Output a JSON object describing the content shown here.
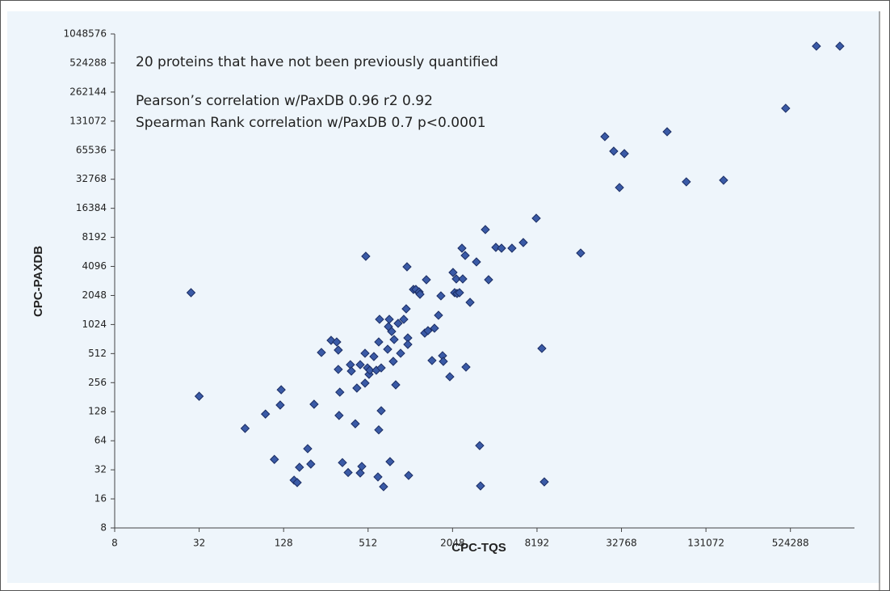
{
  "chart_data": {
    "type": "scatter",
    "annotations": [
      "20 proteins that have not been previously quantified",
      "Pearson’s correlation w/PaxDB 0.96 r2 0.92",
      "Spearman Rank correlation w/PaxDB 0.7 p<0.0001"
    ],
    "x_label": "CPC-TQS",
    "y_label": "CPC-PAXDB",
    "xscale": "log",
    "yscale": "log",
    "log_base": 2,
    "xlim": [
      8,
      1500000
    ],
    "ylim": [
      8,
      1048576
    ],
    "xticks": [
      8,
      32,
      128,
      512,
      2048,
      8192,
      32768,
      131072,
      524288
    ],
    "yticks": [
      8,
      16,
      32,
      64,
      128,
      256,
      512,
      1024,
      2048,
      4096,
      8192,
      16384,
      32768,
      65536,
      131072,
      262144,
      524288,
      1048576
    ],
    "color": "#3a5aa6",
    "series": [
      {
        "x": [
          28,
          32,
          68,
          95,
          110,
          121,
          123,
          152,
          160,
          166,
          190,
          200,
          211,
          238,
          279,
          306,
          314,
          314,
          318,
          322,
          336,
          369,
          383,
          389,
          415,
          426,
          450,
          450,
          462,
          487,
          487,
          493,
          507,
          520,
          527,
          563,
          586,
          602,
          610,
          610,
          618,
          635,
          635,
          660,
          706,
          715,
          725,
          734,
          754,
          774,
          785,
          806,
          838,
          873,
          920,
          957,
          970,
          983,
          983,
          996,
          1078,
          1122,
          1183,
          1200,
          1298,
          1333,
          1369,
          1462,
          1522,
          1626,
          1692,
          1738,
          1761,
          1958,
          2064,
          2120,
          2177,
          2206,
          2295,
          2390,
          2422,
          2520,
          2553,
          2730,
          3032,
          3196,
          3240,
          3508,
          3700,
          4168,
          4575,
          5430,
          6540,
          8088,
          8870,
          9230,
          16760,
          24940,
          28850,
          31700,
          34350,
          69300,
          95000,
          175000,
          485000,
          803000,
          1180000
        ],
        "values": [
          2190,
          185,
          86,
          121,
          41,
          150,
          216,
          25,
          23.6,
          34,
          53,
          36.7,
          153,
          526,
          702,
          676,
          557,
          351,
          117,
          204,
          38,
          30,
          393,
          337,
          96,
          225,
          393,
          29.7,
          34.7,
          253,
          516,
          5216,
          364,
          312,
          344,
          477,
          344,
          27,
          83,
          676,
          1160,
          364,
          131,
          21.4,
          568,
          974,
          1160,
          38.9,
          868,
          425,
          716,
          243,
          1053,
          516,
          1160,
          1489,
          4060,
          744,
          637,
          28,
          2366,
          2366,
          2234,
          2107,
          835,
          2982,
          885,
          434,
          938,
          1277,
          2028,
          487,
          425,
          295,
          3546,
          2190,
          3040,
          2148,
          2190,
          6325,
          3040,
          5320,
          371,
          1738,
          4560,
          57,
          21.8,
          9860,
          2982,
          6450,
          6325,
          6325,
          7240,
          12920,
          579,
          24,
          5630,
          90600,
          64000,
          26900,
          60400,
          101700,
          30800,
          32000,
          178000,
          784000,
          784000
        ]
      }
    ]
  }
}
